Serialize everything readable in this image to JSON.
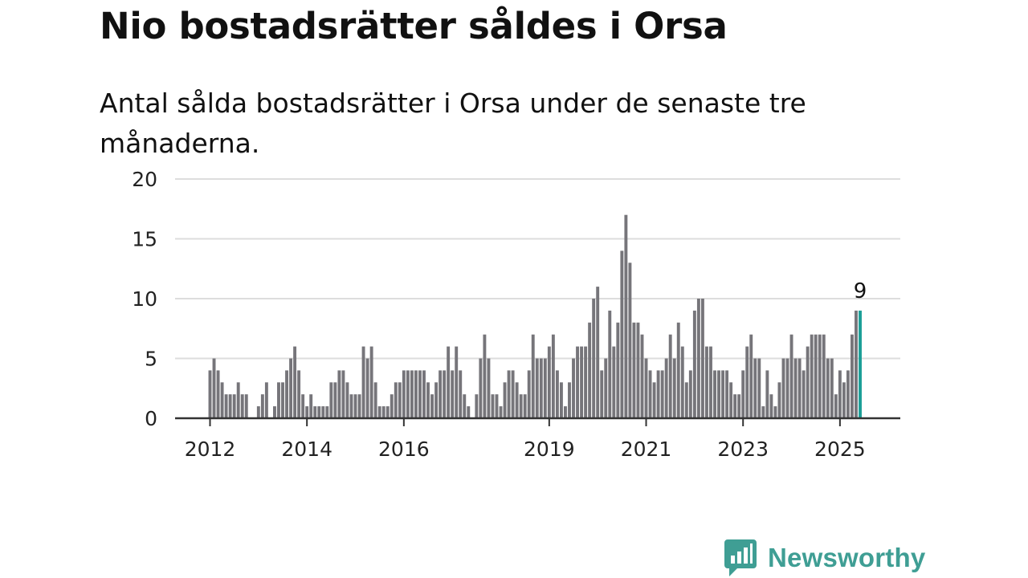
{
  "title": "Nio bostadsrätter såldes i Orsa",
  "subtitle": "Antal sålda bostadsrätter i Orsa under de senaste tre månaderna.",
  "brand": {
    "name": "Newsworthy",
    "color": "#3f9e94"
  },
  "chart_data": {
    "type": "bar",
    "title": "Nio bostadsrätter såldes i Orsa",
    "subtitle": "Antal sålda bostadsrätter i Orsa under de senaste tre månaderna.",
    "xlabel": "",
    "ylabel": "",
    "ylim": [
      0,
      20
    ],
    "yticks": [
      0,
      5,
      10,
      15,
      20
    ],
    "xticks": [
      "2012",
      "2014",
      "2016",
      "2019",
      "2021",
      "2023",
      "2025"
    ],
    "grid": true,
    "bar_color": "#76757a",
    "highlight_color": "#1b9e97",
    "start": "2012-01",
    "frequency": "monthly",
    "values": [
      4,
      5,
      4,
      3,
      2,
      2,
      2,
      3,
      2,
      2,
      0,
      0,
      1,
      2,
      3,
      0,
      1,
      3,
      3,
      4,
      5,
      6,
      4,
      2,
      1,
      2,
      1,
      1,
      1,
      1,
      3,
      3,
      4,
      4,
      3,
      2,
      2,
      2,
      6,
      5,
      6,
      3,
      1,
      1,
      1,
      2,
      3,
      3,
      4,
      4,
      4,
      4,
      4,
      4,
      3,
      2,
      3,
      4,
      4,
      6,
      4,
      6,
      4,
      2,
      1,
      0,
      2,
      5,
      7,
      5,
      2,
      2,
      1,
      3,
      4,
      4,
      3,
      2,
      2,
      4,
      7,
      5,
      5,
      5,
      6,
      7,
      4,
      3,
      1,
      3,
      5,
      6,
      6,
      6,
      8,
      10,
      11,
      4,
      5,
      9,
      6,
      8,
      14,
      17,
      13,
      8,
      8,
      7,
      5,
      4,
      3,
      4,
      4,
      5,
      7,
      5,
      8,
      6,
      3,
      4,
      9,
      10,
      10,
      6,
      6,
      4,
      4,
      4,
      4,
      3,
      2,
      2,
      4,
      6,
      7,
      5,
      5,
      1,
      4,
      2,
      1,
      3,
      5,
      5,
      7,
      5,
      5,
      4,
      6,
      7,
      7,
      7,
      7,
      5,
      5,
      2,
      4,
      3,
      4,
      7,
      9,
      9
    ],
    "highlight": {
      "month": "2025-06",
      "value": 9,
      "label": "9"
    }
  }
}
